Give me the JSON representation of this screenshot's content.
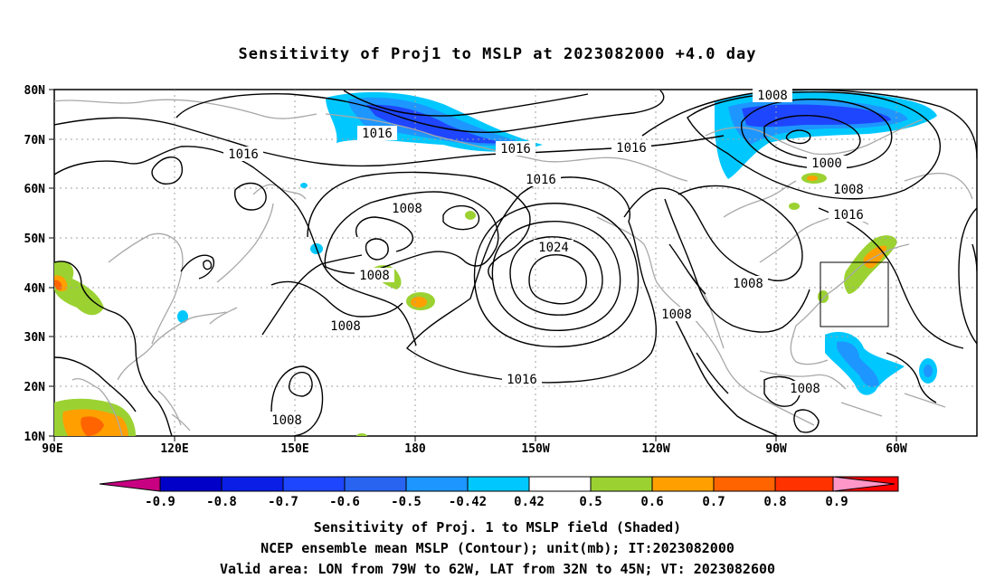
{
  "title": "Sensitivity of Proj1 to MSLP at 2023082000 +4.0 day",
  "lat_labels": [
    "80N",
    "70N",
    "60N",
    "50N",
    "40N",
    "30N",
    "20N",
    "10N"
  ],
  "lon_labels": [
    "90E",
    "120E",
    "150E",
    "180",
    "150W",
    "120W",
    "90W",
    "60W"
  ],
  "contour_labels": [
    "1016",
    "1016",
    "1016",
    "1016",
    "1016",
    "1008",
    "1008",
    "1008",
    "1024",
    "1008",
    "1008",
    "1000",
    "1008",
    "1016",
    "1008",
    "1016",
    "1008",
    "1008"
  ],
  "colorbar": {
    "labels": [
      "-0.9",
      "-0.8",
      "-0.7",
      "-0.6",
      "-0.5",
      "-0.42",
      "0.42",
      "0.5",
      "0.6",
      "0.7",
      "0.8",
      "0.9"
    ],
    "colors": [
      "#0000c8",
      "#0a1ee6",
      "#1e46ff",
      "#2864f0",
      "#1e96ff",
      "#00c8ff",
      "#ffffff",
      "#9bd232",
      "#ffa000",
      "#ff6400",
      "#ff3200",
      "#ff0000"
    ],
    "low_color": "#c80082",
    "high_color": "#ff96c8"
  },
  "captions": {
    "line1": "Sensitivity of Proj. 1 to MSLP field (Shaded)",
    "line2": "NCEP ensemble mean MSLP (Contour); unit(mb); IT:2023082000",
    "line3": "Valid area: LON from 79W to 62W, LAT from 32N to 45N; VT: 2023082600"
  }
}
